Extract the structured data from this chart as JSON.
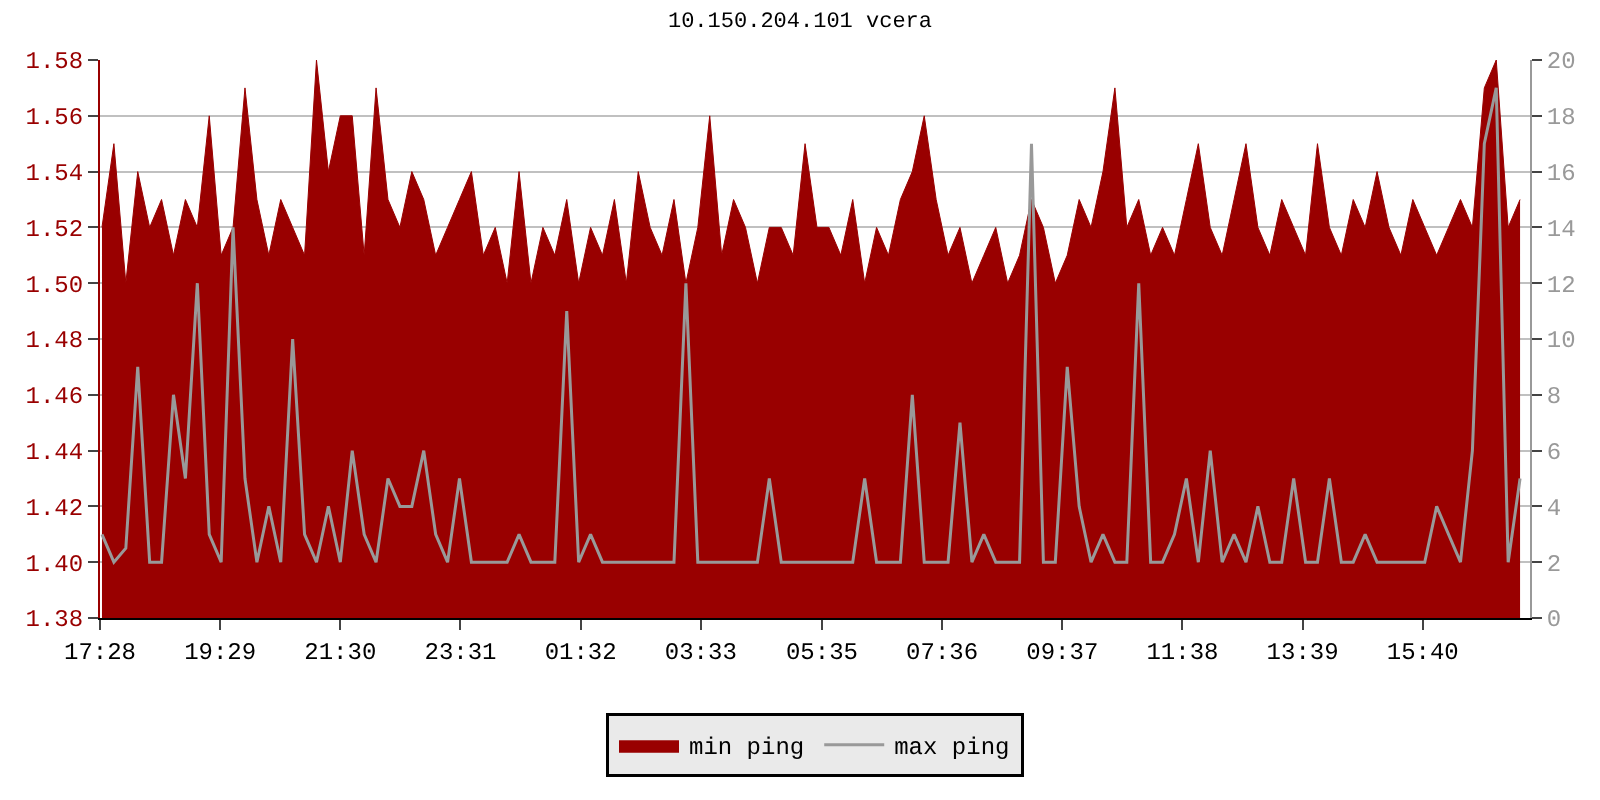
{
  "chart_data": {
    "type": "area",
    "title": "10.150.204.101 vcera",
    "x": [
      "--01-01T17:30",
      "--01-01T17:42",
      "--01-01T17:54",
      "--01-01T18:06",
      "--01-01T18:18",
      "--01-01T18:30",
      "--01-01T18:42",
      "--01-01T18:54",
      "--01-01T19:06",
      "--01-01T19:18",
      "--01-01T19:30",
      "--01-01T19:42",
      "--01-01T19:54",
      "--01-01T20:06",
      "--01-01T20:18",
      "--01-01T20:30",
      "--01-01T20:42",
      "--01-01T20:54",
      "--01-01T21:06",
      "--01-01T21:18",
      "--01-01T21:30",
      "--01-01T21:42",
      "--01-01T21:54",
      "--01-01T22:06",
      "--01-01T22:18",
      "--01-01T22:30",
      "--01-01T22:42",
      "--01-01T22:54",
      "--01-01T23:06",
      "--01-01T23:18",
      "--01-01T23:30",
      "--01-01T23:42",
      "--01-01T23:54",
      "--01-02T00:06",
      "--01-02T00:18",
      "--01-02T00:30",
      "--01-02T00:42",
      "--01-02T00:54",
      "--01-02T01:06",
      "--01-02T01:18",
      "--01-02T01:30",
      "--01-02T01:42",
      "--01-02T01:54",
      "--01-02T02:06",
      "--01-02T02:18",
      "--01-02T02:30",
      "--01-02T02:42",
      "--01-02T02:54",
      "--01-02T03:06",
      "--01-02T03:18",
      "--01-02T03:30",
      "--01-02T03:42",
      "--01-02T03:54",
      "--01-02T04:06",
      "--01-02T04:18",
      "--01-02T04:30",
      "--01-02T04:42",
      "--01-02T04:54",
      "--01-02T05:06",
      "--01-02T05:18",
      "--01-02T05:30",
      "--01-02T05:42",
      "--01-02T05:54",
      "--01-02T06:06",
      "--01-02T06:18",
      "--01-02T06:30",
      "--01-02T06:42",
      "--01-02T06:54",
      "--01-02T07:06",
      "--01-02T07:18",
      "--01-02T07:30",
      "--01-02T07:42",
      "--01-02T07:54",
      "--01-02T08:06",
      "--01-02T08:18",
      "--01-02T08:30",
      "--01-02T08:42",
      "--01-02T08:54",
      "--01-02T09:06",
      "--01-02T09:18",
      "--01-02T09:30",
      "--01-02T09:42",
      "--01-02T09:54",
      "--01-02T10:06",
      "--01-02T10:18",
      "--01-02T10:30",
      "--01-02T10:42",
      "--01-02T10:54",
      "--01-02T11:06",
      "--01-02T11:18",
      "--01-02T11:30",
      "--01-02T11:42",
      "--01-02T11:54",
      "--01-02T12:06",
      "--01-02T12:18",
      "--01-02T12:30",
      "--01-02T12:42",
      "--01-02T12:54",
      "--01-02T13:06",
      "--01-02T13:18",
      "--01-02T13:30",
      "--01-02T13:42",
      "--01-02T13:54",
      "--01-02T14:06",
      "--01-02T14:18",
      "--01-02T14:30",
      "--01-02T14:42",
      "--01-02T14:54",
      "--01-02T15:06",
      "--01-02T15:18",
      "--01-02T15:30",
      "--01-02T15:42",
      "--01-02T15:54",
      "--01-02T16:06",
      "--01-02T16:18",
      "--01-02T16:30",
      "--01-02T16:42",
      "--01-02T16:54",
      "--01-02T17:06",
      "--01-02T17:18"
    ],
    "series": [
      {
        "name": "min ping",
        "color": "#990000",
        "values": [
          1.52,
          1.55,
          1.5,
          1.54,
          1.52,
          1.53,
          1.51,
          1.53,
          1.52,
          1.56,
          1.51,
          1.52,
          1.57,
          1.53,
          1.51,
          1.53,
          1.52,
          1.51,
          1.58,
          1.54,
          1.56,
          1.56,
          1.51,
          1.57,
          1.53,
          1.52,
          1.54,
          1.53,
          1.51,
          1.52,
          1.53,
          1.54,
          1.51,
          1.52,
          1.5,
          1.54,
          1.5,
          1.52,
          1.51,
          1.53,
          1.5,
          1.52,
          1.51,
          1.53,
          1.5,
          1.54,
          1.52,
          1.51,
          1.53,
          1.5,
          1.52,
          1.56,
          1.51,
          1.53,
          1.52,
          1.5,
          1.52,
          1.52,
          1.51,
          1.55,
          1.52,
          1.52,
          1.51,
          1.53,
          1.5,
          1.52,
          1.51,
          1.53,
          1.54,
          1.56,
          1.53,
          1.51,
          1.52,
          1.5,
          1.51,
          1.52,
          1.5,
          1.51,
          1.53,
          1.52,
          1.5,
          1.51,
          1.53,
          1.52,
          1.54,
          1.57,
          1.52,
          1.53,
          1.51,
          1.52,
          1.51,
          1.53,
          1.55,
          1.52,
          1.51,
          1.53,
          1.55,
          1.52,
          1.51,
          1.53,
          1.52,
          1.51,
          1.55,
          1.52,
          1.51,
          1.53,
          1.52,
          1.54,
          1.52,
          1.51,
          1.53,
          1.52,
          1.51,
          1.52,
          1.53,
          1.52,
          1.57,
          1.58,
          1.52,
          1.53
        ]
      },
      {
        "name": "max ping",
        "type": "line",
        "axis": "y2",
        "color": "#999999",
        "values": [
          3,
          2,
          2.5,
          9,
          2,
          2,
          8,
          5,
          12,
          3,
          2,
          14,
          5,
          2,
          4,
          2,
          10,
          3,
          2,
          4,
          2,
          6,
          3,
          2,
          5,
          4,
          4,
          6,
          3,
          2,
          5,
          2,
          2,
          2,
          2,
          3,
          2,
          2,
          2,
          11,
          2,
          3,
          2,
          2,
          2,
          2,
          2,
          2,
          2,
          12,
          2,
          2,
          2,
          2,
          2,
          2,
          5,
          2,
          2,
          2,
          2,
          2,
          2,
          2,
          5,
          2,
          2,
          2,
          8,
          2,
          2,
          2,
          7,
          2,
          3,
          2,
          2,
          2,
          17,
          2,
          2,
          9,
          4,
          2,
          3,
          2,
          2,
          12,
          2,
          2,
          3,
          5,
          2,
          6,
          2,
          3,
          2,
          4,
          2,
          2,
          5,
          2,
          2,
          5,
          2,
          2,
          3,
          2,
          2,
          2,
          2,
          2,
          4,
          3,
          2,
          6,
          17,
          19,
          2,
          5
        ]
      }
    ],
    "xlim": [
      "--01-01T17:28",
      "--01-02T17:28"
    ],
    "xticks": [
      {
        "value": "--01-01T17:28",
        "label": "17:28"
      },
      {
        "value": "--01-01T19:29",
        "label": "19:29"
      },
      {
        "value": "--01-01T21:30",
        "label": "21:30"
      },
      {
        "value": "--01-01T23:31",
        "label": "23:31"
      },
      {
        "value": "--01-02T01:32",
        "label": "01:32"
      },
      {
        "value": "--01-02T03:33",
        "label": "03:33"
      },
      {
        "value": "--01-02T05:35",
        "label": "05:35"
      },
      {
        "value": "--01-02T07:36",
        "label": "07:36"
      },
      {
        "value": "--01-02T09:37",
        "label": "09:37"
      },
      {
        "value": "--01-02T11:38",
        "label": "11:38"
      },
      {
        "value": "--01-02T13:39",
        "label": "13:39"
      },
      {
        "value": "--01-02T15:40",
        "label": "15:40"
      }
    ],
    "ylim": [
      1.38,
      1.58
    ],
    "yticks": [
      {
        "value": 1.38,
        "label": "1.38"
      },
      {
        "value": 1.4,
        "label": "1.40"
      },
      {
        "value": 1.42,
        "label": "1.42"
      },
      {
        "value": 1.44,
        "label": "1.44"
      },
      {
        "value": 1.46,
        "label": "1.46"
      },
      {
        "value": 1.48,
        "label": "1.48"
      },
      {
        "value": 1.5,
        "label": "1.50"
      },
      {
        "value": 1.52,
        "label": "1.52"
      },
      {
        "value": 1.54,
        "label": "1.54"
      },
      {
        "value": 1.56,
        "label": "1.56"
      },
      {
        "value": 1.58,
        "label": "1.58"
      }
    ],
    "y2lim": [
      0,
      20
    ],
    "y2ticks": [
      0,
      2,
      4,
      6,
      8,
      10,
      12,
      14,
      16,
      18,
      20
    ],
    "grid": "y",
    "legend": "bottom"
  }
}
